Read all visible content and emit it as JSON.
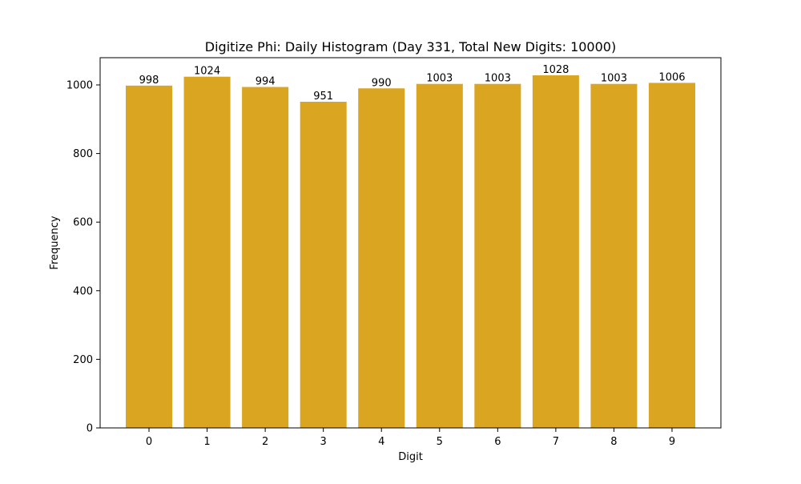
{
  "chart_data": {
    "type": "bar",
    "title": "Digitize Phi: Daily Histogram (Day 331, Total New Digits: 10000)",
    "xlabel": "Digit",
    "ylabel": "Frequency",
    "categories": [
      "0",
      "1",
      "2",
      "3",
      "4",
      "5",
      "6",
      "7",
      "8",
      "9"
    ],
    "values": [
      998,
      1024,
      994,
      951,
      990,
      1003,
      1003,
      1028,
      1003,
      1006
    ],
    "ylim": [
      0,
      1079.4
    ],
    "yticks": [
      0,
      200,
      400,
      600,
      800,
      1000
    ],
    "bar_color": "#DAA520",
    "grid": false,
    "show_value_labels": true
  }
}
